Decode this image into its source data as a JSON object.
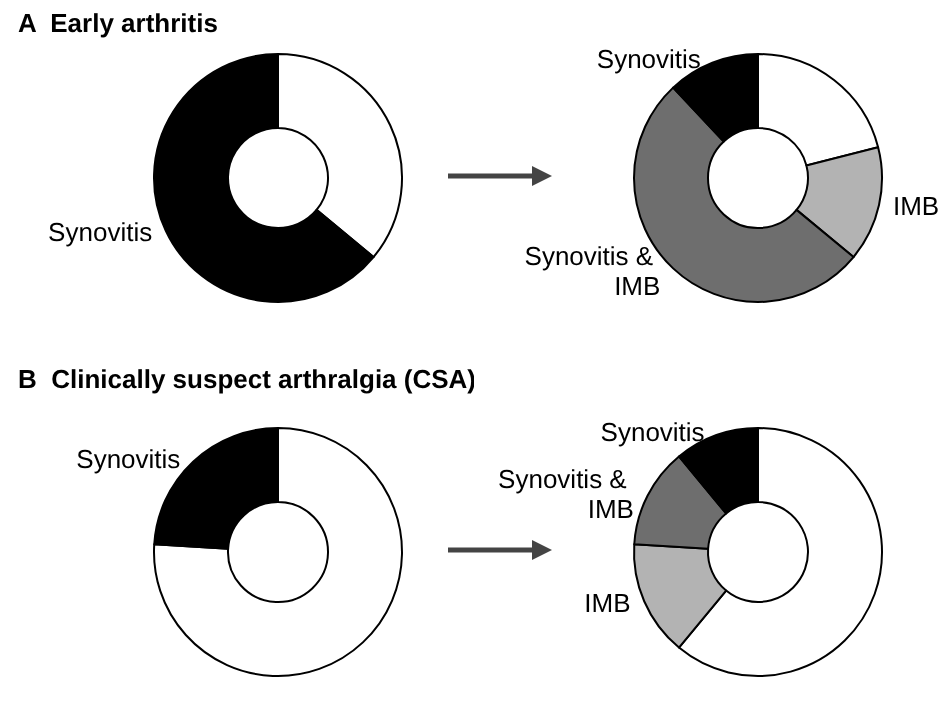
{
  "chart_data": [
    {
      "type": "donut",
      "title": "A  Early arthritis",
      "categories": [
        null,
        "Synovitis"
      ],
      "values": [
        36,
        64
      ],
      "colors": [
        "#ffffff",
        "#000000"
      ]
    },
    {
      "type": "donut",
      "categories": [
        null,
        "IMB",
        "Synovitis & IMB",
        "Synovitis"
      ],
      "values": [
        21,
        15,
        52,
        12
      ],
      "colors": [
        "#ffffff",
        "#b3b3b3",
        "#6e6e6e",
        "#000000"
      ]
    },
    {
      "type": "donut",
      "title": "B  Clinically suspect arthralgia (CSA)",
      "categories": [
        null,
        "Synovitis"
      ],
      "values": [
        76,
        24
      ],
      "colors": [
        "#ffffff",
        "#000000"
      ]
    },
    {
      "type": "donut",
      "categories": [
        null,
        "IMB",
        "Synovitis & IMB",
        "Synovitis"
      ],
      "values": [
        61,
        15,
        13,
        11
      ],
      "colors": [
        "#ffffff",
        "#b3b3b3",
        "#6e6e6e",
        "#000000"
      ]
    }
  ]
}
